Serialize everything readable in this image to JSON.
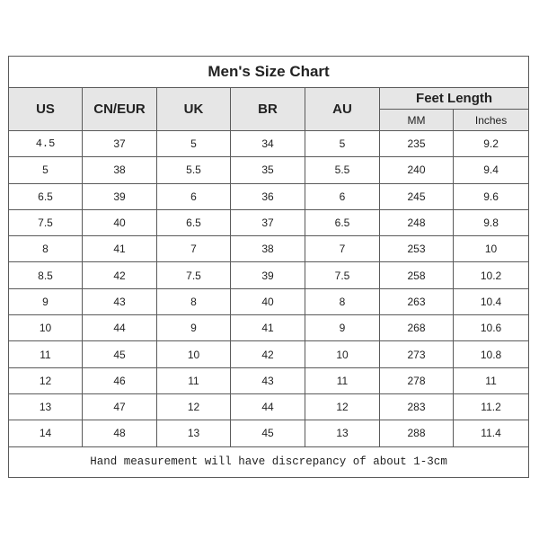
{
  "title": "Men's Size Chart",
  "headers": {
    "us": "US",
    "cneur": "CN/EUR",
    "uk": "UK",
    "br": "BR",
    "au": "AU",
    "feet_length": "Feet Length",
    "mm": "MM",
    "inches": "Inches"
  },
  "rows": [
    [
      "4.5",
      "37",
      "5",
      "34",
      "5",
      "235",
      "9.2"
    ],
    [
      "5",
      "38",
      "5.5",
      "35",
      "5.5",
      "240",
      "9.4"
    ],
    [
      "6.5",
      "39",
      "6",
      "36",
      "6",
      "245",
      "9.6"
    ],
    [
      "7.5",
      "40",
      "6.5",
      "37",
      "6.5",
      "248",
      "9.8"
    ],
    [
      "8",
      "41",
      "7",
      "38",
      "7",
      "253",
      "10"
    ],
    [
      "8.5",
      "42",
      "7.5",
      "39",
      "7.5",
      "258",
      "10.2"
    ],
    [
      "9",
      "43",
      "8",
      "40",
      "8",
      "263",
      "10.4"
    ],
    [
      "10",
      "44",
      "9",
      "41",
      "9",
      "268",
      "10.6"
    ],
    [
      "11",
      "45",
      "10",
      "42",
      "10",
      "273",
      "10.8"
    ],
    [
      "12",
      "46",
      "11",
      "43",
      "11",
      "278",
      "11"
    ],
    [
      "13",
      "47",
      "12",
      "44",
      "12",
      "283",
      "11.2"
    ],
    [
      "14",
      "48",
      "13",
      "45",
      "13",
      "288",
      "11.4"
    ]
  ],
  "footer": "Hand measurement will have discrepancy of about 1-3cm",
  "colors": {
    "header_bg": "#e6e6e6",
    "border": "#5a5a5a"
  }
}
